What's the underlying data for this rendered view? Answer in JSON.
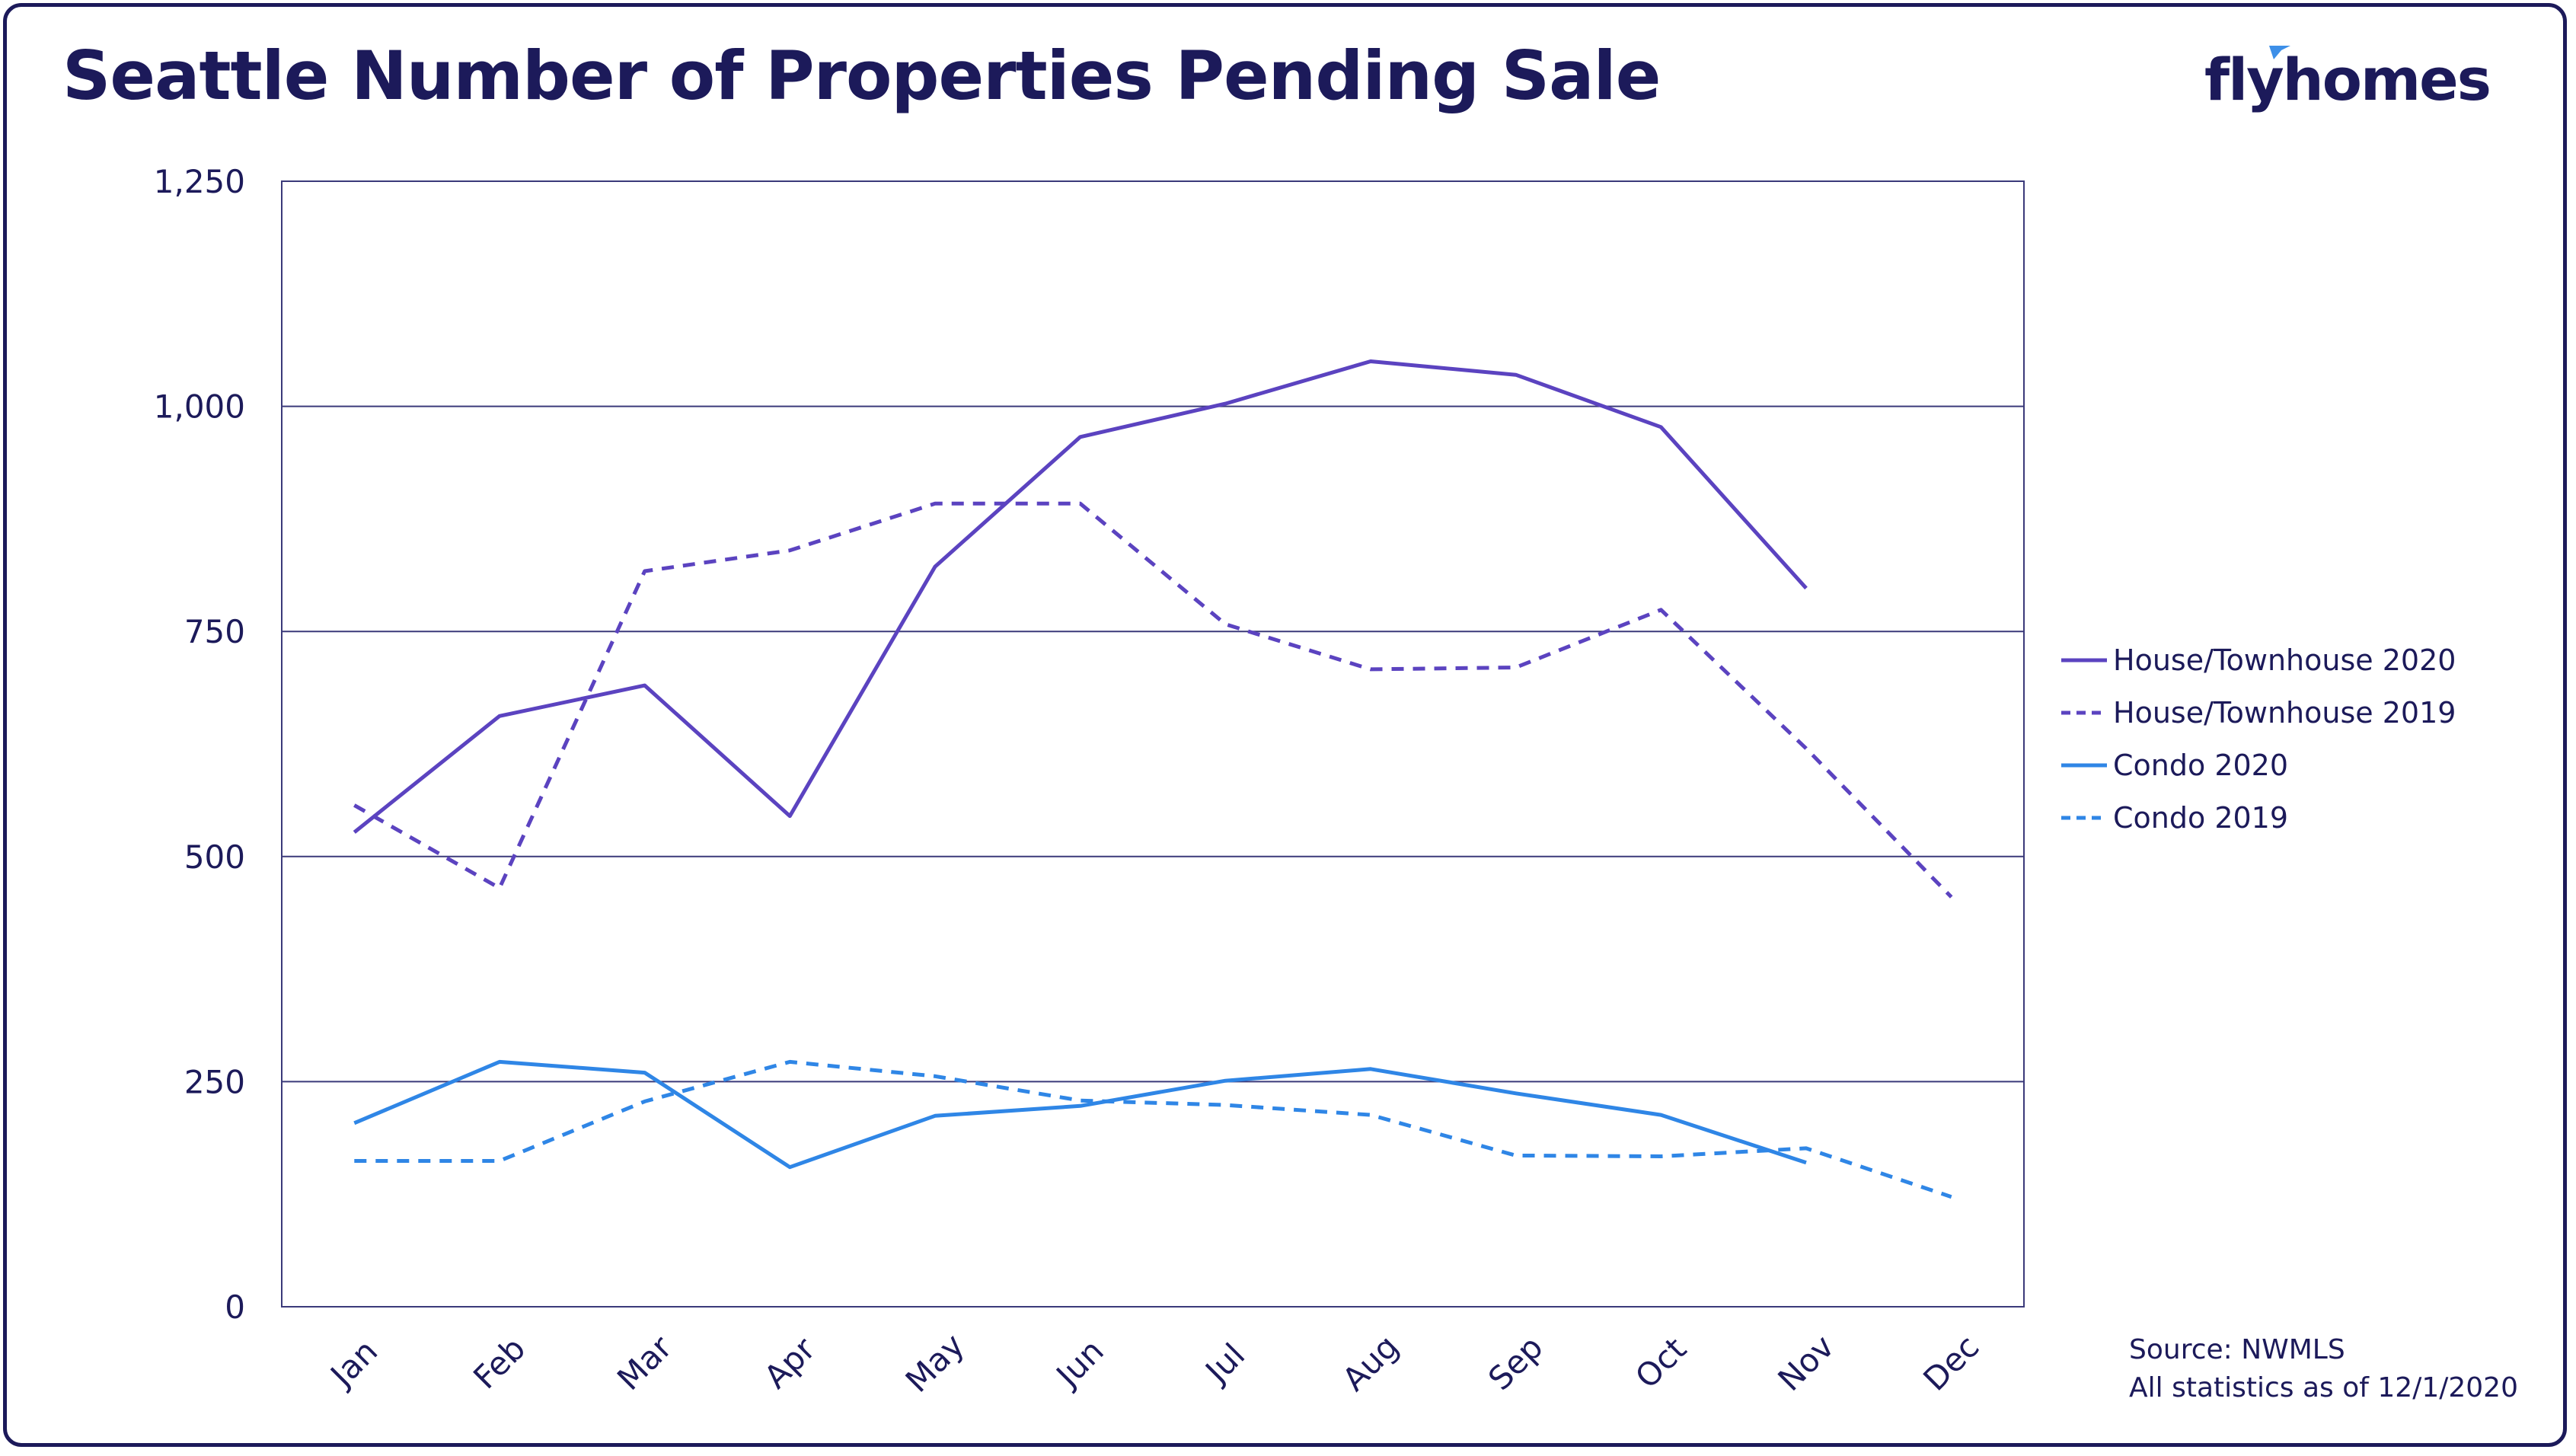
{
  "title": "Seattle Number of Properties Pending Sale",
  "logo": {
    "text": "flyhomes",
    "accent_color": "#3d8fe8"
  },
  "source": {
    "line1": "Source: NWMLS",
    "line2": "All statistics as of 12/1/2020"
  },
  "colors": {
    "text": "#1c1a5a",
    "grid": "#3b3a7a",
    "house": "#5b43c0",
    "condo": "#2f86e6"
  },
  "chart_data": {
    "type": "line",
    "title": "Seattle Number of Properties Pending Sale",
    "categories": [
      "Jan",
      "Feb",
      "Mar",
      "Apr",
      "May",
      "Jun",
      "Jul",
      "Aug",
      "Sep",
      "Oct",
      "Nov",
      "Dec"
    ],
    "ylim": [
      0,
      1250
    ],
    "yticks": [
      0,
      250,
      500,
      750,
      1000,
      1250
    ],
    "ytick_labels": [
      "0",
      "250",
      "500",
      "750",
      "1,000",
      "1,250"
    ],
    "grid": true,
    "legend_position": "right",
    "series": [
      {
        "name": "House/Townhouse 2020",
        "color": "#5b43c0",
        "dash": false,
        "values": [
          527,
          656,
          690,
          545,
          822,
          966,
          1003,
          1050,
          1035,
          977,
          798,
          null
        ]
      },
      {
        "name": "House/Townhouse 2019",
        "color": "#5b43c0",
        "dash": true,
        "values": [
          557,
          465,
          817,
          840,
          892,
          892,
          758,
          708,
          710,
          774,
          620,
          455
        ]
      },
      {
        "name": "Condo 2020",
        "color": "#2f86e6",
        "dash": false,
        "values": [
          204,
          272,
          260,
          155,
          212,
          223,
          251,
          264,
          237,
          213,
          160,
          null
        ]
      },
      {
        "name": "Condo 2019",
        "color": "#2f86e6",
        "dash": true,
        "values": [
          162,
          162,
          228,
          272,
          256,
          229,
          224,
          213,
          168,
          167,
          176,
          122
        ]
      }
    ]
  }
}
